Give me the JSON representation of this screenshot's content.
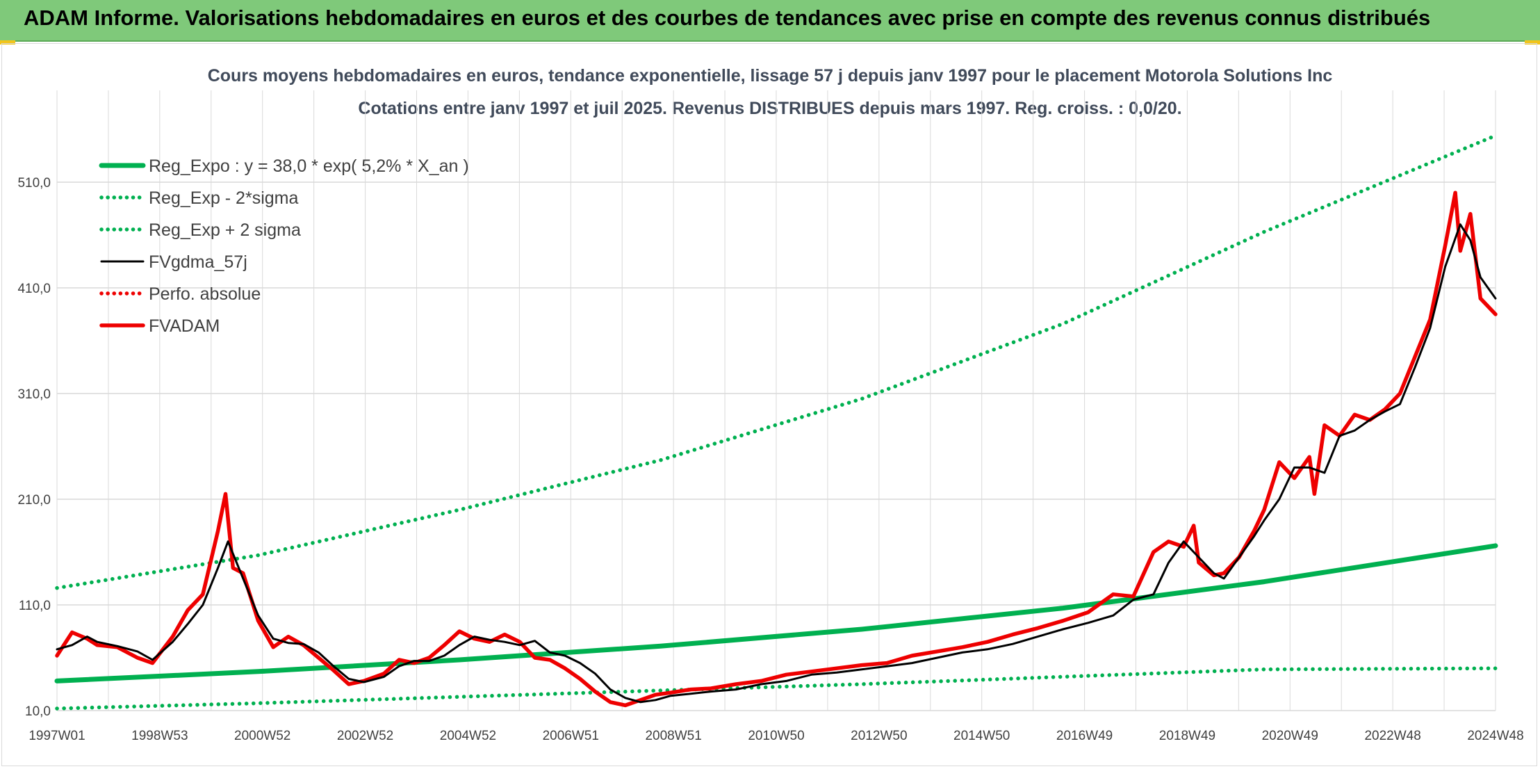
{
  "banner": {
    "title": "ADAM Informe. Valorisations hebdomadaires en euros et des courbes de tendances avec prise en compte des revenus connus distribués"
  },
  "colors": {
    "banner_bg": "#7fc97a",
    "green": "#00b050",
    "red": "#ee0000",
    "black": "#000000",
    "grid": "#d9d9d9"
  },
  "chart_data": {
    "type": "line",
    "title": "Cours moyens hebdomadaires en euros, tendance exponentielle, lissage 57 j depuis janv 1997 pour le placement Motorola Solutions Inc",
    "subtitle": "Cotations entre janv 1997 et juil 2025. Revenus DISTRIBUES depuis mars 1997. Reg. croiss. : 0,0/20.",
    "xlabel": "",
    "ylabel": "",
    "x_ticks": [
      "1997W01",
      "1998W53",
      "2000W52",
      "2002W52",
      "2004W52",
      "2006W51",
      "2008W51",
      "2010W50",
      "2012W50",
      "2014W50",
      "2016W49",
      "2018W49",
      "2020W49",
      "2022W48",
      "2024W48"
    ],
    "y_ticks": [
      "10,0",
      "110,0",
      "210,0",
      "310,0",
      "410,0",
      "510,0"
    ],
    "ylim": [
      10,
      510
    ],
    "xlim": [
      1997.0,
      2025.6
    ],
    "grid": true,
    "legend_position": "top-left",
    "series": [
      {
        "name": "Reg_Expo : y = 38,0 * exp( 5,2% *  X_an )",
        "style": "solid-thick",
        "color": "#00b050",
        "x": [
          1997.0,
          2001.0,
          2005.0,
          2009.0,
          2013.0,
          2017.0,
          2021.0,
          2025.6
        ],
        "values": [
          38,
          47,
          58,
          71,
          87,
          107,
          132,
          166
        ]
      },
      {
        "name": "Reg_Exp - 2*sigma",
        "style": "dotted",
        "color": "#00b050",
        "x": [
          1997.0,
          2001.0,
          2005.0,
          2009.0,
          2013.0,
          2017.0,
          2021.0,
          2025.6
        ],
        "values": [
          12,
          17,
          23,
          29,
          35,
          42,
          49,
          50
        ]
      },
      {
        "name": "Reg_Exp + 2 sigma",
        "style": "dotted",
        "color": "#00b050",
        "x": [
          1997.0,
          2001.0,
          2005.0,
          2009.0,
          2013.0,
          2017.0,
          2021.0,
          2025.6
        ],
        "values": [
          126,
          157,
          200,
          247,
          305,
          376,
          463,
          554
        ]
      },
      {
        "name": "FVgdma_57j",
        "style": "solid",
        "color": "#000000",
        "x": [
          1997.0,
          1997.3,
          1997.6,
          1997.8,
          1998.2,
          1998.6,
          1998.9,
          1999.3,
          1999.6,
          1999.9,
          2000.2,
          2000.4,
          2000.7,
          2001.0,
          2001.3,
          2001.6,
          2001.9,
          2002.2,
          2002.5,
          2002.8,
          2003.1,
          2003.5,
          2003.8,
          2004.1,
          2004.4,
          2004.7,
          2005.0,
          2005.3,
          2005.6,
          2005.9,
          2006.2,
          2006.5,
          2006.8,
          2007.1,
          2007.4,
          2007.7,
          2008.0,
          2008.3,
          2008.6,
          2008.9,
          2009.2,
          2009.6,
          2010.0,
          2010.5,
          2011.0,
          2011.5,
          2012.0,
          2012.5,
          2013.0,
          2013.5,
          2014.0,
          2014.5,
          2015.0,
          2015.5,
          2016.0,
          2016.5,
          2017.0,
          2017.5,
          2018.0,
          2018.4,
          2018.8,
          2019.1,
          2019.4,
          2019.7,
          2020.0,
          2020.2,
          2020.5,
          2020.8,
          2021.0,
          2021.3,
          2021.6,
          2021.9,
          2022.2,
          2022.5,
          2022.8,
          2023.1,
          2023.4,
          2023.7,
          2024.0,
          2024.3,
          2024.6,
          2024.9,
          2025.1,
          2025.3,
          2025.6
        ],
        "values": [
          68,
          72,
          80,
          75,
          71,
          66,
          58,
          75,
          92,
          110,
          145,
          170,
          135,
          100,
          78,
          74,
          73,
          65,
          52,
          40,
          37,
          42,
          52,
          57,
          57,
          62,
          72,
          80,
          77,
          75,
          72,
          76,
          65,
          62,
          55,
          45,
          30,
          22,
          18,
          20,
          24,
          26,
          28,
          30,
          35,
          38,
          44,
          46,
          49,
          52,
          55,
          60,
          65,
          68,
          73,
          80,
          87,
          93,
          100,
          115,
          120,
          150,
          170,
          155,
          140,
          135,
          155,
          175,
          190,
          210,
          240,
          240,
          235,
          270,
          275,
          285,
          293,
          300,
          335,
          372,
          430,
          470,
          455,
          420,
          400
        ]
      },
      {
        "name": "Perfo. absolue",
        "style": "dotted",
        "color": "#ee0000",
        "x": [],
        "values": []
      },
      {
        "name": "FVADAM",
        "style": "solid-thick",
        "color": "#ee0000",
        "x": [
          1997.0,
          1997.3,
          1997.6,
          1997.8,
          1998.2,
          1998.6,
          1998.9,
          1999.3,
          1999.6,
          1999.9,
          2000.2,
          2000.35,
          2000.5,
          2000.7,
          2001.0,
          2001.3,
          2001.6,
          2001.9,
          2002.2,
          2002.5,
          2002.8,
          2003.1,
          2003.5,
          2003.8,
          2004.1,
          2004.4,
          2004.7,
          2005.0,
          2005.3,
          2005.6,
          2005.9,
          2006.2,
          2006.5,
          2006.8,
          2007.1,
          2007.4,
          2007.7,
          2008.0,
          2008.3,
          2008.6,
          2008.9,
          2009.2,
          2009.6,
          2010.0,
          2010.5,
          2011.0,
          2011.5,
          2012.0,
          2012.5,
          2013.0,
          2013.5,
          2014.0,
          2014.5,
          2015.0,
          2015.5,
          2016.0,
          2016.5,
          2017.0,
          2017.5,
          2018.0,
          2018.4,
          2018.8,
          2019.1,
          2019.4,
          2019.6,
          2019.7,
          2020.0,
          2020.2,
          2020.5,
          2020.8,
          2021.0,
          2021.3,
          2021.6,
          2021.9,
          2022.0,
          2022.2,
          2022.5,
          2022.8,
          2023.1,
          2023.4,
          2023.7,
          2024.0,
          2024.3,
          2024.6,
          2024.8,
          2024.9,
          2025.1,
          2025.3,
          2025.6
        ],
        "values": [
          62,
          84,
          78,
          72,
          70,
          60,
          55,
          80,
          105,
          120,
          180,
          215,
          145,
          140,
          95,
          70,
          80,
          72,
          60,
          48,
          35,
          38,
          45,
          58,
          55,
          60,
          72,
          85,
          78,
          75,
          82,
          75,
          60,
          58,
          50,
          40,
          28,
          18,
          15,
          20,
          25,
          27,
          30,
          31,
          35,
          38,
          44,
          47,
          50,
          53,
          55,
          62,
          66,
          70,
          75,
          82,
          88,
          95,
          103,
          120,
          118,
          160,
          170,
          165,
          185,
          150,
          138,
          140,
          155,
          180,
          200,
          245,
          230,
          250,
          215,
          280,
          270,
          290,
          285,
          295,
          310,
          345,
          380,
          450,
          500,
          445,
          480,
          400,
          385
        ]
      }
    ]
  }
}
